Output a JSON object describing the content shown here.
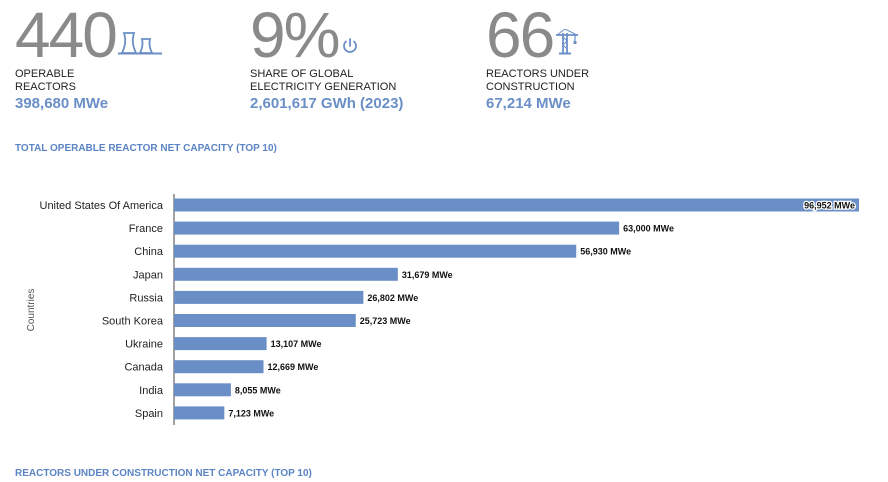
{
  "stats": [
    {
      "number": "440",
      "label": "OPERABLE\nREACTORS",
      "sub": "398,680 MWe",
      "icon": "cooling-tower-icon"
    },
    {
      "number": "9%",
      "label": "SHARE OF GLOBAL\nELECTRICITY GENERATION",
      "sub": "2,601,617 GWh (2023)",
      "icon": "power-icon"
    },
    {
      "number": "66",
      "label": "REACTORS UNDER\nCONSTRUCTION",
      "sub": "67,214 MWe",
      "icon": "crane-icon"
    }
  ],
  "section_titles": {
    "operable": "TOTAL OPERABLE REACTOR NET CAPACITY (TOP 10)",
    "construction": "REACTORS UNDER CONSTRUCTION NET CAPACITY (TOP 10)"
  },
  "colors": {
    "bar": "#6a8fc7",
    "accent": "#5b84c4",
    "number": "#8a8a8a"
  },
  "chart_data": {
    "type": "bar",
    "orientation": "horizontal",
    "title": "TOTAL OPERABLE REACTOR NET CAPACITY (TOP 10)",
    "ylabel": "Countries",
    "xlabel": "",
    "categories": [
      "United States Of America",
      "France",
      "China",
      "Japan",
      "Russia",
      "South Korea",
      "Ukraine",
      "Canada",
      "India",
      "Spain"
    ],
    "values": [
      96952,
      63000,
      56930,
      31679,
      26802,
      25723,
      13107,
      12669,
      8055,
      7123
    ],
    "value_labels": [
      "96,952 MWe",
      "63,000 MWe",
      "56,930 MWe",
      "31,679 MWe",
      "26,802 MWe",
      "25,723 MWe",
      "13,107 MWe",
      "12,669 MWe",
      "8,055 MWe",
      "7,123 MWe"
    ],
    "xlim": [
      0,
      96952
    ],
    "grid": false,
    "legend": "none"
  }
}
